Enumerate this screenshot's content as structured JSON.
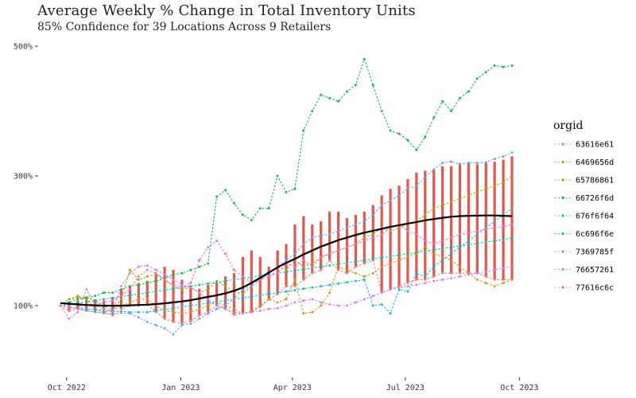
{
  "title": "Average Weekly % Change in Total Inventory Units",
  "subtitle": "85% Confidence for 39 Locations Across 9 Retailers",
  "chart_data": {
    "type": "line",
    "title": "Average Weekly % Change in Total Inventory Units",
    "subtitle": "85% Confidence for 39 Locations Across 9 Retailers",
    "x_ticks": [
      "Oct 2022",
      "Jan 2023",
      "Apr 2023",
      "Jul 2023",
      "Oct 2023"
    ],
    "y_ticks": [
      {
        "value": 100,
        "label": "100%"
      },
      {
        "value": 300,
        "label": "300%"
      },
      {
        "value": 500,
        "label": "500%"
      }
    ],
    "ylim": [
      40,
      540
    ],
    "grid": false,
    "legend": {
      "title": "orgid",
      "position": "right"
    },
    "x_dates": [
      "2022-09-26",
      "2022-10-03",
      "2022-10-10",
      "2022-10-17",
      "2022-10-24",
      "2022-10-31",
      "2022-11-07",
      "2022-11-14",
      "2022-11-21",
      "2022-11-28",
      "2022-12-05",
      "2022-12-12",
      "2022-12-19",
      "2022-12-26",
      "2023-01-02",
      "2023-01-09",
      "2023-01-16",
      "2023-01-23",
      "2023-01-30",
      "2023-02-06",
      "2023-02-13",
      "2023-02-20",
      "2023-02-27",
      "2023-03-06",
      "2023-03-13",
      "2023-03-20",
      "2023-03-27",
      "2023-04-03",
      "2023-04-10",
      "2023-04-17",
      "2023-04-24",
      "2023-05-01",
      "2023-05-08",
      "2023-05-15",
      "2023-05-22",
      "2023-05-29",
      "2023-06-05",
      "2023-06-12",
      "2023-06-19",
      "2023-06-26",
      "2023-07-03",
      "2023-07-10",
      "2023-07-17",
      "2023-07-24",
      "2023-07-31",
      "2023-08-07",
      "2023-08-14",
      "2023-08-21",
      "2023-08-28",
      "2023-09-04",
      "2023-09-11",
      "2023-09-18",
      "2023-09-25"
    ],
    "confidence_interval": {
      "lower": [
        100,
        92,
        95,
        93,
        90,
        90,
        85,
        95,
        100,
        100,
        102,
        90,
        80,
        75,
        72,
        76,
        85,
        90,
        100,
        95,
        86,
        88,
        90,
        98,
        110,
        118,
        130,
        130,
        140,
        150,
        155,
        170,
        155,
        150,
        160,
        165,
        170,
        120,
        125,
        130,
        135,
        140,
        140,
        145,
        150,
        150,
        150,
        150,
        150,
        145,
        140,
        140,
        140
      ],
      "upper": [
        100,
        105,
        108,
        112,
        110,
        108,
        112,
        125,
        130,
        135,
        138,
        148,
        160,
        155,
        140,
        130,
        126,
        132,
        135,
        145,
        150,
        175,
        185,
        175,
        160,
        185,
        195,
        225,
        238,
        225,
        230,
        245,
        245,
        235,
        240,
        245,
        255,
        270,
        280,
        285,
        295,
        305,
        308,
        310,
        315,
        315,
        320,
        320,
        318,
        320,
        322,
        325,
        330
      ]
    },
    "trend": {
      "name": "",
      "values": [
        104,
        103,
        102,
        101,
        100.5,
        100,
        100,
        100,
        100.5,
        101,
        101.5,
        102.5,
        103.5,
        105,
        106.5,
        108.5,
        111,
        113.5,
        116,
        119,
        123,
        128,
        135,
        143,
        151,
        159,
        166,
        172,
        179,
        185,
        191,
        196,
        201,
        205,
        209,
        212.5,
        215.5,
        218.5,
        221.5,
        224,
        226.5,
        229,
        231.5,
        233.5,
        235.5,
        237,
        238,
        238.5,
        238.8,
        239,
        239,
        238.5,
        238
      ]
    },
    "series": [
      {
        "name": "63616e61",
        "color": "#F8766D",
        "values": [
          100,
          92,
          95,
          93,
          90,
          90,
          85,
          95,
          100,
          100,
          102,
          90,
          80,
          75,
          72,
          76,
          85,
          90,
          100,
          95,
          86,
          88,
          90,
          98,
          110,
          118,
          130,
          130,
          140,
          150,
          155,
          170,
          155,
          150,
          160,
          165,
          170,
          120,
          125,
          130,
          135,
          140,
          140,
          145,
          150,
          150,
          150,
          150,
          150,
          145,
          140,
          140,
          140
        ]
      },
      {
        "name": "6469656d",
        "color": "#D39200",
        "values": [
          100,
          110,
          115,
          110,
          95,
          90,
          93,
          100,
          105,
          110,
          110,
          100,
          92,
          90,
          88,
          90,
          95,
          100,
          105,
          100,
          95,
          88,
          92,
          100,
          110,
          105,
          110,
          140,
          88,
          90,
          100,
          120,
          160,
          155,
          150,
          145,
          150,
          160,
          165,
          170,
          175,
          180,
          190,
          180,
          175,
          170,
          160,
          150,
          140,
          135,
          130,
          135,
          140
        ]
      },
      {
        "name": "65786861",
        "color": "#93AA00",
        "values": [
          100,
          110,
          112,
          113,
          108,
          100,
          92,
          110,
          155,
          140,
          145,
          148,
          140,
          130,
          125,
          128,
          120,
          125,
          138,
          130,
          122,
          118,
          130,
          140,
          150,
          160,
          155,
          170,
          160,
          165,
          175,
          180,
          185,
          190,
          195,
          205,
          210,
          220,
          215,
          220,
          225,
          230,
          240,
          250,
          255,
          260,
          265,
          270,
          275,
          280,
          285,
          290,
          300
        ]
      },
      {
        "name": "66726f6d",
        "color": "#00BA38",
        "values": [
          100,
          105,
          110,
          112,
          115,
          120,
          120,
          125,
          130,
          132,
          135,
          138,
          142,
          148,
          150,
          155,
          160,
          165,
          268,
          278,
          258,
          240,
          232,
          250,
          250,
          300,
          275,
          280,
          370,
          400,
          425,
          420,
          415,
          430,
          440,
          480,
          440,
          400,
          370,
          365,
          355,
          340,
          360,
          390,
          415,
          400,
          420,
          430,
          450,
          460,
          470,
          468,
          470
        ]
      },
      {
        "name": "676f6f64",
        "color": "#00C19F",
        "values": [
          100,
          102,
          104,
          106,
          108,
          110,
          112,
          114,
          116,
          118,
          120,
          122,
          124,
          126,
          128,
          130,
          132,
          134,
          136,
          138,
          140,
          142,
          144,
          146,
          148,
          150,
          152,
          154,
          156,
          158,
          160,
          162,
          164,
          166,
          168,
          170,
          172,
          174,
          176,
          178,
          180,
          182,
          184,
          186,
          188,
          190,
          192,
          194,
          196,
          198,
          200,
          202,
          204
        ]
      },
      {
        "name": "6c696f6e",
        "color": "#00B9E3",
        "values": [
          100,
          98,
          96,
          95,
          94,
          93,
          92,
          91,
          90,
          90,
          90,
          92,
          94,
          96,
          98,
          100,
          102,
          104,
          106,
          108,
          110,
          112,
          114,
          116,
          118,
          120,
          122,
          124,
          126,
          128,
          130,
          132,
          134,
          136,
          138,
          140,
          100,
          102,
          88,
          125,
          122,
          150,
          145,
          160,
          170,
          180,
          190,
          200,
          210,
          220,
          230,
          240,
          250
        ]
      },
      {
        "name": "7369785f",
        "color": "#619CFF",
        "values": [
          100,
          98,
          95,
          92,
          90,
          88,
          87,
          89,
          88,
          82,
          75,
          70,
          65,
          56,
          70,
          72,
          80,
          88,
          95,
          100,
          110,
          125,
          130,
          140,
          150,
          160,
          170,
          180,
          195,
          205,
          208,
          210,
          215,
          220,
          225,
          230,
          240,
          255,
          262,
          270,
          280,
          285,
          298,
          310,
          320,
          322,
          318,
          320,
          320,
          321,
          326,
          330,
          336
        ]
      },
      {
        "name": "76657261",
        "color": "#DB72FB",
        "values": [
          100,
          80,
          90,
          125,
          100,
          95,
          90,
          130,
          150,
          160,
          162,
          155,
          148,
          140,
          132,
          128,
          120,
          110,
          100,
          95,
          90,
          88,
          90,
          92,
          95,
          96,
          100,
          105,
          108,
          110,
          105,
          102,
          100,
          100,
          105,
          110,
          115,
          120,
          125,
          128,
          130,
          132,
          135,
          138,
          140,
          142,
          145,
          148,
          150,
          152,
          155,
          158,
          160
        ]
      },
      {
        "name": "77616c6c",
        "color": "#FF61C3",
        "values": [
          100,
          98,
          95,
          100,
          102,
          105,
          108,
          115,
          125,
          145,
          155,
          150,
          140,
          132,
          128,
          135,
          170,
          190,
          200,
          180,
          155,
          145,
          135,
          140,
          145,
          150,
          165,
          160,
          170,
          160,
          175,
          180,
          185,
          190,
          195,
          200,
          205,
          210,
          220,
          225,
          215,
          210,
          200,
          195,
          200,
          205,
          210,
          212,
          215,
          218,
          220,
          222,
          225
        ]
      }
    ]
  }
}
